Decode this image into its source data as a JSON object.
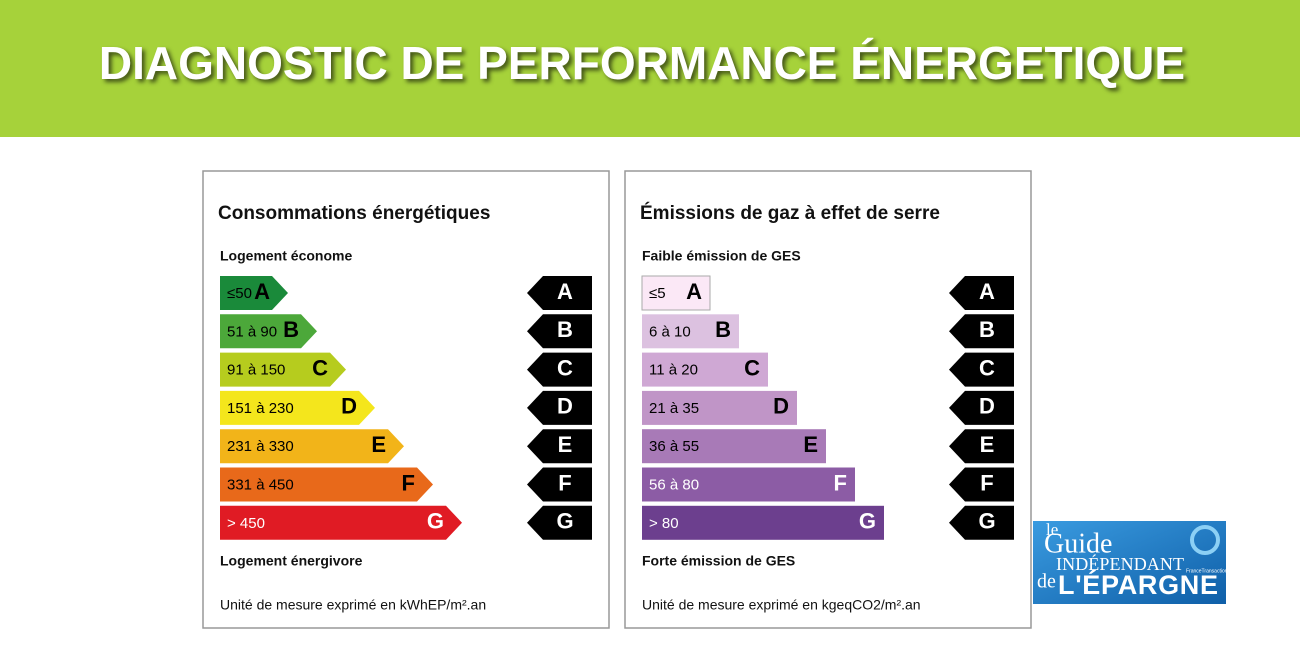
{
  "header": {
    "title": "DIAGNOSTIC DE PERFORMANCE ÉNERGETIQUE"
  },
  "panels": [
    {
      "title": "Consommations énergétiques",
      "top_label": "Logement économe",
      "bottom_label": "Logement énergivore",
      "unit": "Unité de mesure exprimé en kWhEP/m².an",
      "shape": "arrow",
      "rows": [
        {
          "range": "≤50",
          "class": "A",
          "color": "#1a8a3a",
          "text_color": "#000"
        },
        {
          "range": "51 à 90",
          "class": "B",
          "color": "#4ca83a",
          "text_color": "#000"
        },
        {
          "range": "91 à 150",
          "class": "C",
          "color": "#b6cc1e",
          "text_color": "#000"
        },
        {
          "range": "151 à 230",
          "class": "D",
          "color": "#f4e61c",
          "text_color": "#000"
        },
        {
          "range": "231 à 330",
          "class": "E",
          "color": "#f2b419",
          "text_color": "#000"
        },
        {
          "range": "331 à 450",
          "class": "F",
          "color": "#e8691a",
          "text_color": "#000"
        },
        {
          "range": "> 450",
          "class": "G",
          "color": "#e01b24",
          "text_color": "#fff"
        }
      ]
    },
    {
      "title": "Émissions de gaz à effet de serre",
      "top_label": "Faible émission de GES",
      "bottom_label": "Forte émission de GES",
      "unit": "Unité de mesure exprimé en kgeqCO2/m².an",
      "shape": "rect",
      "rows": [
        {
          "range": "≤5",
          "class": "A",
          "color": "#fbe8f6",
          "text_color": "#000"
        },
        {
          "range": "6 à 10",
          "class": "B",
          "color": "#dcc1e0",
          "text_color": "#000"
        },
        {
          "range": "11 à 20",
          "class": "C",
          "color": "#cfa8d4",
          "text_color": "#000"
        },
        {
          "range": "21 à 35",
          "class": "D",
          "color": "#c095c7",
          "text_color": "#000"
        },
        {
          "range": "36 à 55",
          "class": "E",
          "color": "#a87ab7",
          "text_color": "#000"
        },
        {
          "range": "56 à 80",
          "class": "F",
          "color": "#8c5ca5",
          "text_color": "#fff"
        },
        {
          "range": "> 80",
          "class": "G",
          "color": "#6c3f8e",
          "text_color": "#fff"
        }
      ]
    }
  ],
  "logo": {
    "le": "le",
    "guide": "Guide",
    "independant": "INDÉPENDANT",
    "de": "de",
    "epargne": "L'ÉPARGNE",
    "site": "FranceTransactions.com"
  }
}
